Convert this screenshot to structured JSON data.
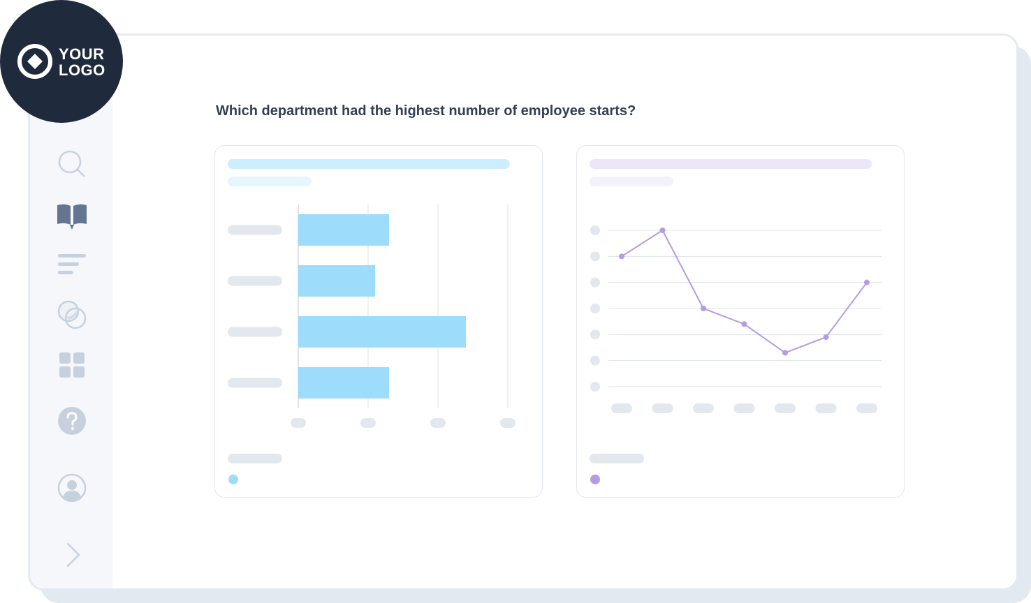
{
  "brand": {
    "logo_line1": "YOUR",
    "logo_line2": "LOGO",
    "logo_color": "#1f2a3c"
  },
  "sidebar": {
    "items": [
      {
        "name": "search",
        "icon": "search-icon",
        "active": false
      },
      {
        "name": "library",
        "icon": "book-icon",
        "active": true
      },
      {
        "name": "reports",
        "icon": "text-lines-icon",
        "active": false
      },
      {
        "name": "overlap",
        "icon": "circles-icon",
        "active": false
      },
      {
        "name": "dashboard",
        "icon": "grid-icon",
        "active": false
      },
      {
        "name": "help",
        "icon": "question-icon",
        "active": false
      },
      {
        "name": "profile",
        "icon": "user-icon",
        "active": false
      },
      {
        "name": "expand",
        "icon": "chevron-right-icon",
        "active": false
      }
    ]
  },
  "main": {
    "question": "Which department had the highest number of employee starts?"
  },
  "colors": {
    "bar": "#9ddcfb",
    "line": "#b39ce0",
    "placeholder": "#e3e8ee",
    "active_icon": "#637591",
    "inactive_icon": "#c7d1de"
  },
  "chart_data": [
    {
      "type": "bar",
      "orientation": "horizontal",
      "categories": [
        "",
        "",
        "",
        ""
      ],
      "values": [
        1.3,
        1.1,
        2.4,
        1.3
      ],
      "xlim": [
        0,
        3
      ],
      "grid": true,
      "legend": "bottom-left",
      "color": "#9ddcfb"
    },
    {
      "type": "line",
      "x": [
        1,
        2,
        3,
        4,
        5,
        6,
        7
      ],
      "values": [
        5,
        6,
        3,
        2.4,
        1.3,
        1.9,
        4
      ],
      "ylim": [
        0,
        6
      ],
      "grid": true,
      "legend": "bottom-left",
      "color": "#b39ce0"
    }
  ]
}
